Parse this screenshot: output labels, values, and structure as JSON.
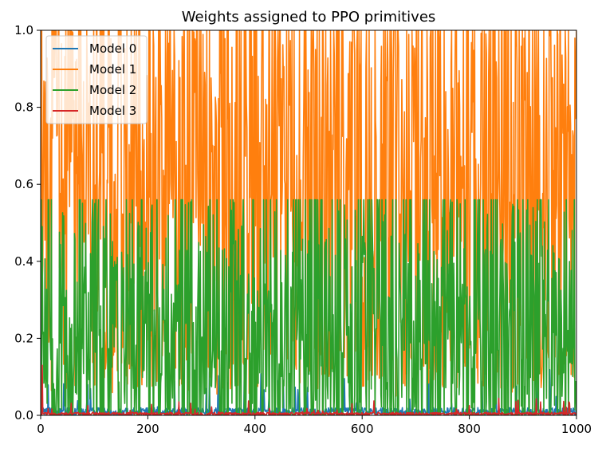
{
  "chart_data": {
    "type": "line",
    "title": "Weights assigned to PPO primitives",
    "xlabel": "",
    "ylabel": "",
    "xlim": [
      0,
      1000
    ],
    "ylim": [
      0,
      1.0
    ],
    "grid": false,
    "legend_position": "top-left",
    "x_ticks": [
      0,
      200,
      400,
      600,
      800,
      1000
    ],
    "y_ticks": [
      0.0,
      0.2,
      0.4,
      0.6,
      0.8,
      1.0
    ],
    "x_tick_labels": [
      "0",
      "200",
      "400",
      "600",
      "800",
      "1000"
    ],
    "y_tick_labels": [
      "0.0",
      "0.2",
      "0.4",
      "0.6",
      "0.8",
      "1.0"
    ],
    "series": [
      {
        "name": "Model 0",
        "color": "#1f77b4",
        "mean": 0.01,
        "spread": 0.04,
        "peak_max": 0.13,
        "typical_values": [
          0.0,
          0.01,
          0.03,
          0.06,
          0.12
        ]
      },
      {
        "name": "Model 1",
        "color": "#ff7f0e",
        "mean": 0.6,
        "spread": 0.25,
        "peak_max": 1.0,
        "typical_values": [
          0.1,
          0.3,
          0.6,
          0.9,
          1.0
        ]
      },
      {
        "name": "Model 2",
        "color": "#2ca02c",
        "mean": 0.12,
        "spread": 0.12,
        "peak_max": 0.56,
        "typical_values": [
          0.0,
          0.05,
          0.15,
          0.3,
          0.56
        ]
      },
      {
        "name": "Model 3",
        "color": "#d62728",
        "mean": 0.005,
        "spread": 0.008,
        "peak_max": 0.13,
        "typical_values": [
          0.0,
          0.005,
          0.01,
          0.04,
          0.13
        ]
      }
    ]
  }
}
